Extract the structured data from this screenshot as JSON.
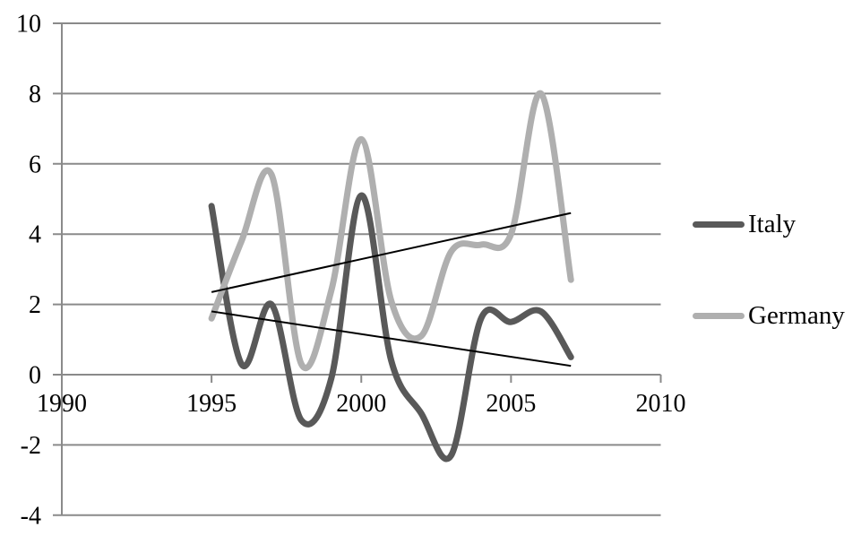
{
  "chart_data": {
    "type": "line",
    "title": "",
    "xlabel": "",
    "ylabel": "",
    "x": [
      1995,
      1996,
      1997,
      1998,
      1999,
      2000,
      2001,
      2002,
      2003,
      2004,
      2005,
      2006,
      2007
    ],
    "series": [
      {
        "name": "Italy",
        "color": "#595959",
        "line_width": 7,
        "smooth": true,
        "values": [
          4.8,
          0.3,
          2.0,
          -1.3,
          -0.1,
          5.1,
          0.4,
          -1.1,
          -2.3,
          1.6,
          1.5,
          1.8,
          0.5
        ],
        "trendline": {
          "type": "linear",
          "x_start": 1995,
          "y_start": 1.8,
          "x_end": 2007,
          "y_end": 0.25,
          "color": "#000000"
        }
      },
      {
        "name": "Germany",
        "color": "#afafaf",
        "line_width": 7,
        "smooth": true,
        "values": [
          1.6,
          3.8,
          5.7,
          0.3,
          2.4,
          6.7,
          2.1,
          1.1,
          3.5,
          3.7,
          4.0,
          8.0,
          2.7
        ],
        "trendline": {
          "type": "linear",
          "x_start": 1995,
          "y_start": 2.35,
          "x_end": 2007,
          "y_end": 4.6,
          "color": "#000000"
        }
      }
    ],
    "xlim": [
      1990,
      2010
    ],
    "ylim": [
      -4,
      10
    ],
    "xticks": [
      1990,
      1995,
      2000,
      2005,
      2010
    ],
    "yticks": [
      10,
      8,
      6,
      4,
      2,
      0,
      -2,
      -4
    ],
    "grid": true,
    "gridline_color": "#8a8a8a",
    "axis_color": "#8a8a8a",
    "tick_label_color": "#000000",
    "legend_position": "right"
  }
}
